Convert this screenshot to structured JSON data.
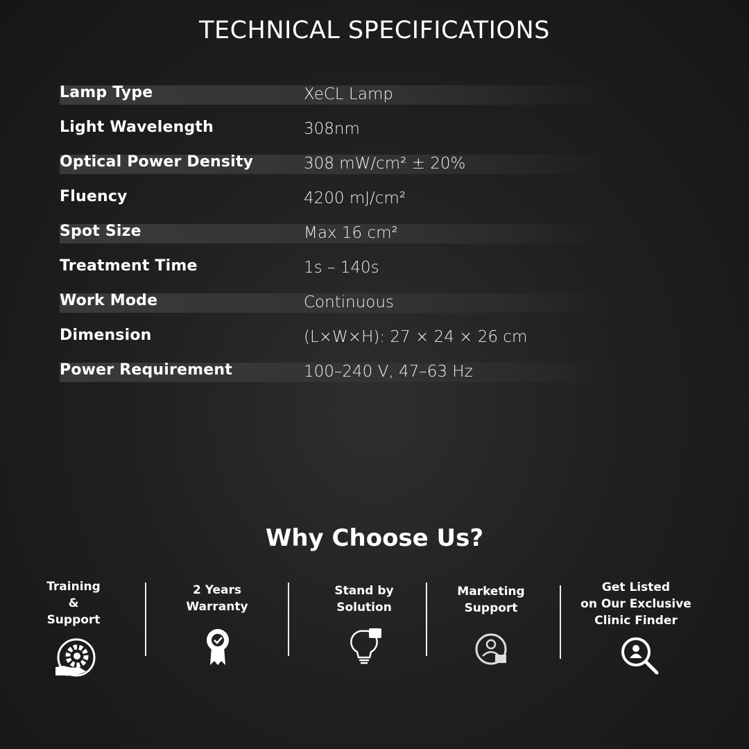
{
  "title": "TECHNICAL SPECIFICATIONS",
  "specs": [
    {
      "label": "Lamp Type",
      "value": "XeCL Lamp"
    },
    {
      "label": "Light Wavelength",
      "value": "308nm"
    },
    {
      "label": "Optical Power Density",
      "value": "308 mW/cm² ± 20%"
    },
    {
      "label": "Fluency",
      "value": "4200 mJ/cm²"
    },
    {
      "label": "Spot Size",
      "value": "Max 16 cm²"
    },
    {
      "label": "Treatment Time",
      "value": "1s – 140s"
    },
    {
      "label": "Work Mode",
      "value": "Continuous"
    },
    {
      "label": "Dimension",
      "value": "(L×W×H): 27 × 24 × 26 cm"
    },
    {
      "label": "Power Requirement",
      "value": "100–240 V, 47–63 Hz"
    }
  ],
  "why": {
    "title": "Why Choose Us?",
    "features": [
      {
        "lines": [
          "Training",
          "&",
          "Support"
        ],
        "icon": "gear-hand-icon"
      },
      {
        "lines": [
          "2 Years",
          "Warranty"
        ],
        "icon": "award-badge-icon"
      },
      {
        "lines": [
          "Stand by",
          "Solution"
        ],
        "icon": "lightbulb-puzzle-icon"
      },
      {
        "lines": [
          "Marketing",
          "Support"
        ],
        "icon": "marketing-support-icon"
      },
      {
        "lines": [
          "Get Listed",
          "on Our Exclusive",
          "Clinic Finder"
        ],
        "icon": "search-person-icon"
      }
    ]
  }
}
